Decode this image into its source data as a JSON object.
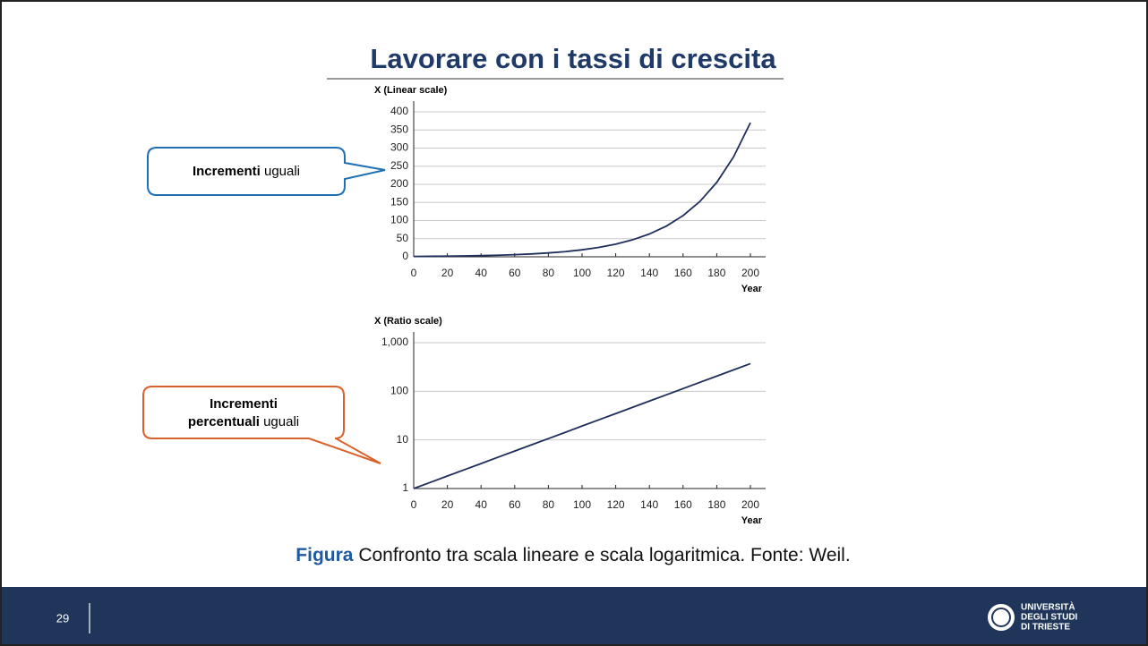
{
  "title": "Lavorare con i tassi di crescita",
  "callouts": [
    {
      "bold": "Incrementi",
      "rest": "uguali"
    },
    {
      "bold_line1": "Incrementi",
      "bold_line2": "percentuali",
      "rest": "uguali"
    }
  ],
  "caption": {
    "label": "Figura",
    "text": "Confronto tra scala lineare e scala logaritmica. Fonte: Weil."
  },
  "footer": {
    "page": "29",
    "logo_line1": "UNIVERSITÀ",
    "logo_line2": "DEGLI STUDI",
    "logo_line3": "DI TRIESTE"
  },
  "chart_data": [
    {
      "type": "line",
      "y_label": "X (Linear scale)",
      "x_label": "Year",
      "log_y": false,
      "grid": true,
      "color": "#1f2f5c",
      "x": [
        0,
        10,
        20,
        30,
        40,
        50,
        60,
        70,
        80,
        90,
        100,
        110,
        120,
        130,
        140,
        150,
        160,
        170,
        180,
        190,
        200
      ],
      "values": [
        1,
        1.34,
        1.81,
        2.43,
        3.26,
        4.39,
        5.9,
        7.93,
        10.66,
        14.3,
        19.3,
        25.9,
        34.8,
        46.8,
        62.9,
        84.5,
        113.6,
        152.7,
        205.2,
        275.7,
        370
      ],
      "xlim": [
        0,
        200
      ],
      "xticks": [
        0,
        20,
        40,
        60,
        80,
        100,
        120,
        140,
        160,
        180,
        200
      ],
      "ylim": [
        0,
        400
      ],
      "yticks": [
        0,
        50,
        100,
        150,
        200,
        250,
        300,
        350,
        400
      ]
    },
    {
      "type": "line",
      "y_label": "X (Ratio scale)",
      "x_label": "Year",
      "log_y": true,
      "grid": true,
      "color": "#1f2f5c",
      "x": [
        0,
        10,
        20,
        30,
        40,
        50,
        60,
        70,
        80,
        90,
        100,
        110,
        120,
        130,
        140,
        150,
        160,
        170,
        180,
        190,
        200
      ],
      "values": [
        1,
        1.34,
        1.81,
        2.43,
        3.26,
        4.39,
        5.9,
        7.93,
        10.66,
        14.3,
        19.3,
        25.9,
        34.8,
        46.8,
        62.9,
        84.5,
        113.6,
        152.7,
        205.2,
        275.7,
        370
      ],
      "xlim": [
        0,
        200
      ],
      "xticks": [
        0,
        20,
        40,
        60,
        80,
        100,
        120,
        140,
        160,
        180,
        200
      ],
      "ylim": [
        1,
        1000
      ],
      "yticks": [
        1,
        10,
        100,
        {
          "value": 1000,
          "label": "1,000"
        }
      ]
    }
  ]
}
